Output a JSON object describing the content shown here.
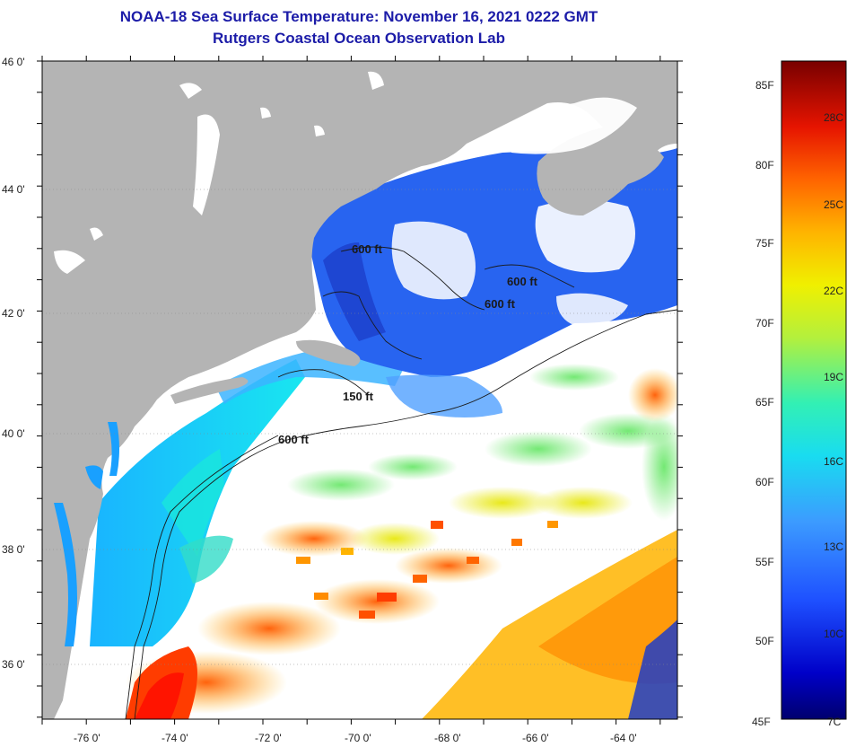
{
  "header": {
    "title": "NOAA-18 Sea Surface Temperature:  November 16, 2021 0222 GMT",
    "subtitle": "Rutgers Coastal Ocean Observation Lab"
  },
  "map": {
    "lat_labels": [
      "46 0'",
      "44 0'",
      "42 0'",
      "40 0'",
      "38 0'",
      "36 0'"
    ],
    "lon_labels": [
      "-76 0'",
      "-74 0'",
      "-72 0'",
      "-70 0'",
      "-68 0'",
      "-66 0'",
      "-64 0'"
    ],
    "contour_labels": [
      "600 ft",
      "600 ft",
      "600 ft",
      "150 ft",
      "600 ft"
    ],
    "colors": {
      "land": "#b4b4b4",
      "cloud": "#ffffff",
      "frame": "#000000"
    }
  },
  "colorbar": {
    "fahrenheit": [
      "85F",
      "80F",
      "75F",
      "70F",
      "65F",
      "60F",
      "55F",
      "50F",
      "45F"
    ],
    "celsius": [
      "28C",
      "25C",
      "22C",
      "19C",
      "16C",
      "13C",
      "10C",
      "7C"
    ],
    "stops": [
      "#00006e",
      "#0000c8",
      "#1e50ff",
      "#3c9bff",
      "#19dcf0",
      "#32f0b4",
      "#b4f03c",
      "#f0f000",
      "#ffb400",
      "#ff6400",
      "#e61400",
      "#780000"
    ]
  }
}
